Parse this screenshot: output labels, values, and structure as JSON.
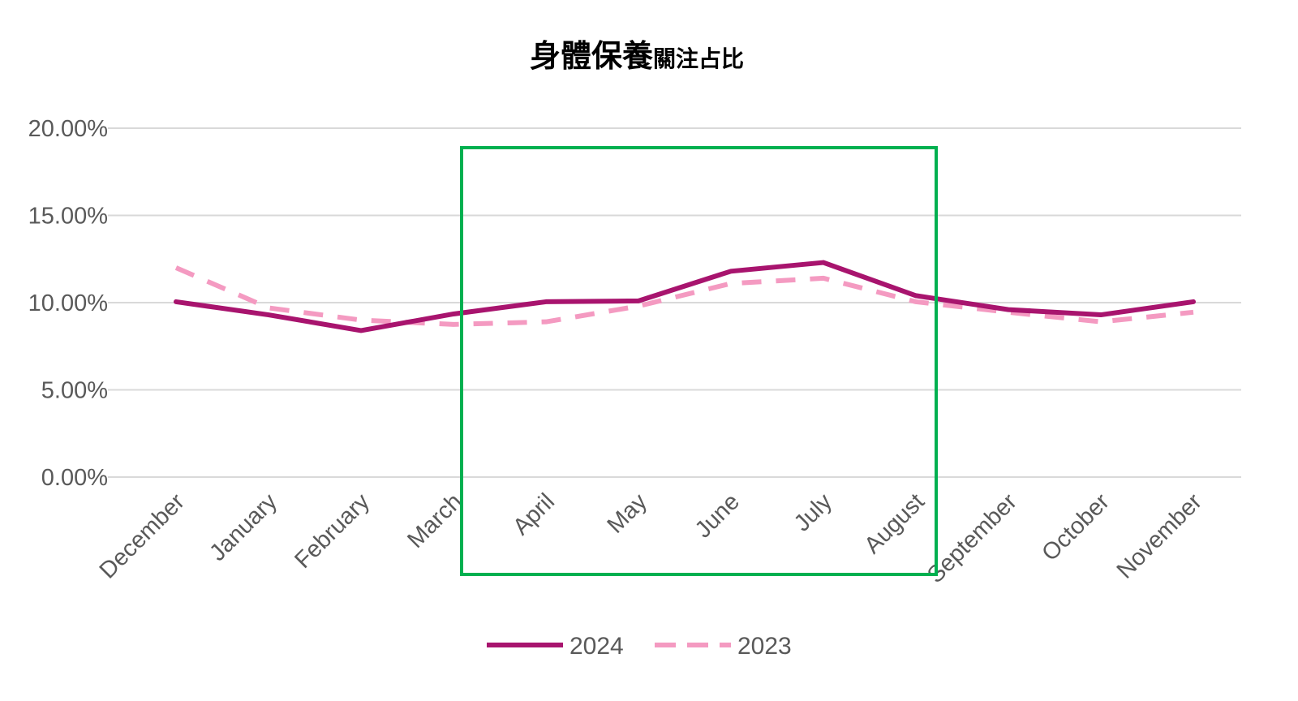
{
  "chart_data": {
    "type": "line",
    "title": "身體保養",
    "title_suffix": "關注占比",
    "xlabel": "",
    "ylabel": "",
    "categories": [
      "December",
      "January",
      "February",
      "March",
      "April",
      "May",
      "June",
      "July",
      "August",
      "September",
      "October",
      "November"
    ],
    "ylim": [
      0,
      20
    ],
    "yticks": [
      0,
      5,
      10,
      15,
      20
    ],
    "ytick_labels": [
      "0.00%",
      "5.00%",
      "10.00%",
      "15.00%",
      "20.00%"
    ],
    "grid": true,
    "legend_position": "bottom",
    "series": [
      {
        "name": "2024",
        "color": "#A8146E",
        "style": "solid",
        "values": [
          10.05,
          9.3,
          8.4,
          9.35,
          10.05,
          10.1,
          11.8,
          12.3,
          10.4,
          9.6,
          9.3,
          10.05
        ]
      },
      {
        "name": "2023",
        "color": "#F49AC1",
        "style": "dashed",
        "values": [
          12.0,
          9.7,
          9.0,
          8.75,
          8.9,
          9.8,
          11.1,
          11.4,
          10.05,
          9.45,
          8.9,
          9.45
        ]
      }
    ],
    "annotation": {
      "type": "highlight-box",
      "from": "April",
      "to": "August",
      "color": "#00B050"
    }
  }
}
